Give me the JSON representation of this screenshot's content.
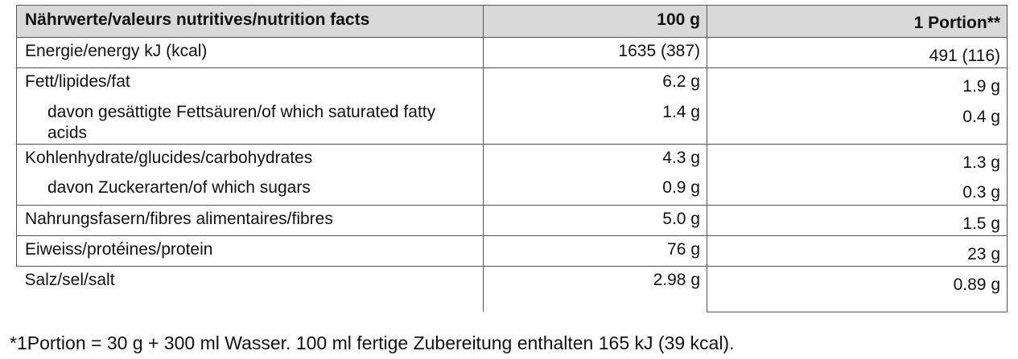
{
  "table": {
    "headers": {
      "name": "Nährwerte/valeurs nutritives/nutrition facts",
      "per_100g": "100 g",
      "per_portion": "1 Portion**"
    },
    "rows": [
      {
        "name": "Energie/energy kJ (kcal)",
        "per_100g": "1635 (387)",
        "per_portion": "491 (116)"
      },
      {
        "name": "Fett/lipides/fat",
        "per_100g": "6.2 g",
        "per_portion": "1.9 g"
      },
      {
        "name": "davon gesättigte Fettsäuren/of which saturated fatty acids",
        "per_100g": "1.4 g",
        "per_portion": "0.4 g"
      },
      {
        "name": "Kohlenhydrate/glucides/carbohydrates",
        "per_100g": "4.3 g",
        "per_portion": "1.3 g"
      },
      {
        "name": "davon Zuckerarten/of which sugars",
        "per_100g": "0.9 g",
        "per_portion": "0.3 g"
      },
      {
        "name": "Nahrungsfasern/fibres alimentaires/fibres",
        "per_100g": "5.0 g",
        "per_portion": "1.5 g"
      },
      {
        "name": "Eiweiss/protéines/protein",
        "per_100g": "76 g",
        "per_portion": "23 g"
      },
      {
        "name": "Salz/sel/salt",
        "per_100g": "2.98 g",
        "per_portion": "0.89 g"
      }
    ]
  },
  "footnote": "*1Portion = 30 g + 300 ml Wasser. 100 ml fertige Zubereitung enthalten 165 kJ (39 kcal)."
}
